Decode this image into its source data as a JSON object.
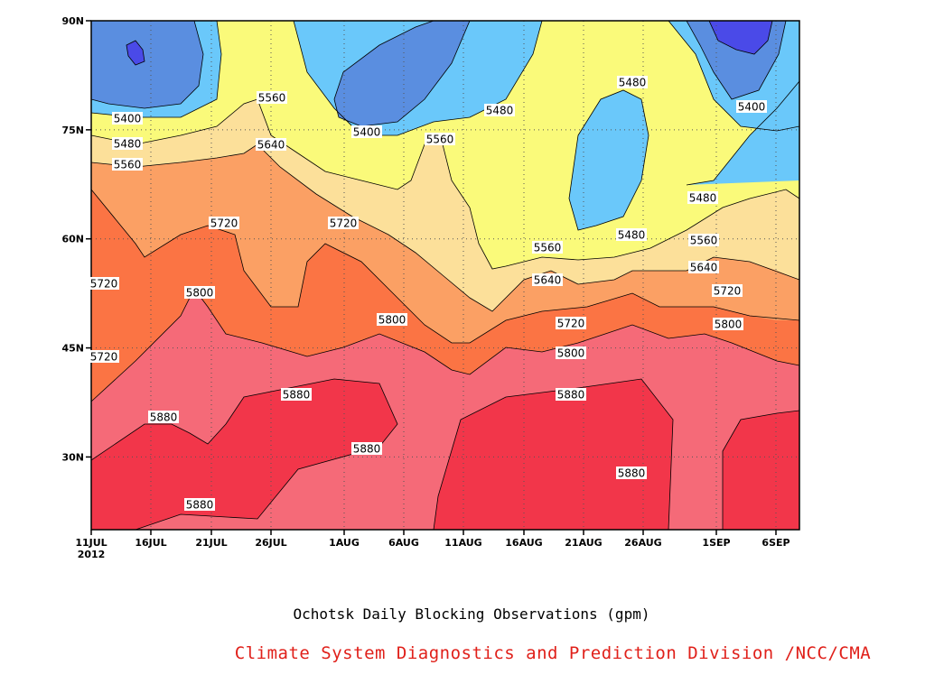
{
  "chart_data": {
    "type": "heatmap",
    "title": "Ochotsk Daily Blocking Observations (gpm)",
    "credit": "Climate System Diagnostics and Prediction Division /NCC/CMA",
    "xlabel": "",
    "ylabel": "",
    "x_ticks": [
      "11JUL",
      "16JUL",
      "21JUL",
      "26JUL",
      "1AUG",
      "6AUG",
      "11AUG",
      "16AUG",
      "21AUG",
      "26AUG",
      "1SEP",
      "6SEP"
    ],
    "x_year": "2012",
    "y_ticks": [
      "30N",
      "45N",
      "60N",
      "75N",
      "90N"
    ],
    "ylim": [
      20,
      90
    ],
    "grid": true,
    "contour_levels": [
      5400,
      5480,
      5560,
      5640,
      5720,
      5800,
      5880
    ],
    "level_colors": {
      "below_5400": "#4a4ae8",
      "5400_5480": "#5a8ee0",
      "5480_5560": "#6ac8fa",
      "5560_5640": "#fafa7a",
      "5640_5720": "#fce09a",
      "5720_5800": "#fba064",
      "5800_5880": "#fb7444",
      "5880_5960": "#f56a78",
      "above_5960": "#f2364a"
    },
    "contour_labels": [
      {
        "text": "5400"
      },
      {
        "text": "5480"
      },
      {
        "text": "5560"
      },
      {
        "text": "5560"
      },
      {
        "text": "5640"
      },
      {
        "text": "5400"
      },
      {
        "text": "5560"
      },
      {
        "text": "5480"
      },
      {
        "text": "5480"
      },
      {
        "text": "5400"
      },
      {
        "text": "5480"
      },
      {
        "text": "5480"
      },
      {
        "text": "5560"
      },
      {
        "text": "5560"
      },
      {
        "text": "5640"
      },
      {
        "text": "5640"
      },
      {
        "text": "5720"
      },
      {
        "text": "5720"
      },
      {
        "text": "5720"
      },
      {
        "text": "5720"
      },
      {
        "text": "5720"
      },
      {
        "text": "5720"
      },
      {
        "text": "5800"
      },
      {
        "text": "5800"
      },
      {
        "text": "5800"
      },
      {
        "text": "5800"
      },
      {
        "text": "5880"
      },
      {
        "text": "5880"
      },
      {
        "text": "5880"
      },
      {
        "text": "5880"
      },
      {
        "text": "5880"
      },
      {
        "text": "5880"
      }
    ]
  }
}
